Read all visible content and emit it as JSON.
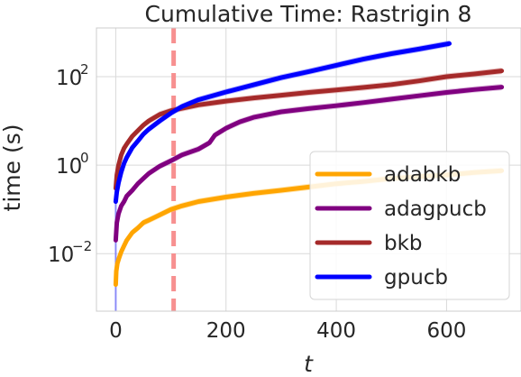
{
  "chart_data": {
    "type": "line",
    "title": "Cumulative Time: Rastrigin 8",
    "xlabel": "t",
    "ylabel": "time (s)",
    "xlim": [
      -35,
      735
    ],
    "ylim_log10": [
      -3.3,
      3.1
    ],
    "yscale": "log",
    "grid": true,
    "legend_position": "bottom-right",
    "x_ticks": [
      {
        "value": 0,
        "label": "0"
      },
      {
        "value": 200,
        "label": "200"
      },
      {
        "value": 400,
        "label": "400"
      },
      {
        "value": 600,
        "label": "600"
      }
    ],
    "y_ticks": [
      {
        "exp": 2,
        "base": "10",
        "sup": "2"
      },
      {
        "exp": 0,
        "base": "10",
        "sup": "0"
      },
      {
        "exp": -2,
        "base": "10",
        "sup": "−2"
      }
    ],
    "vline": {
      "x": 105,
      "color": "#f79090"
    },
    "series": [
      {
        "name": "adabkb",
        "color": "#ffa500",
        "band_color": "#ffcc66",
        "points": [
          [
            0,
            0.002
          ],
          [
            1,
            0.004
          ],
          [
            3,
            0.006
          ],
          [
            6,
            0.008
          ],
          [
            10,
            0.011
          ],
          [
            15,
            0.015
          ],
          [
            20,
            0.02
          ],
          [
            30,
            0.03
          ],
          [
            40,
            0.038
          ],
          [
            50,
            0.05
          ],
          [
            60,
            0.057
          ],
          [
            80,
            0.075
          ],
          [
            100,
            0.1
          ],
          [
            120,
            0.12
          ],
          [
            150,
            0.15
          ],
          [
            200,
            0.19
          ],
          [
            250,
            0.23
          ],
          [
            300,
            0.27
          ],
          [
            350,
            0.32
          ],
          [
            400,
            0.38
          ],
          [
            450,
            0.43
          ],
          [
            500,
            0.5
          ],
          [
            550,
            0.55
          ],
          [
            600,
            0.6
          ],
          [
            650,
            0.68
          ],
          [
            700,
            0.75
          ]
        ]
      },
      {
        "name": "adagpucb",
        "color": "#800080",
        "band_color": "#c080c0",
        "points": [
          [
            0,
            0.02
          ],
          [
            2,
            0.05
          ],
          [
            5,
            0.08
          ],
          [
            10,
            0.12
          ],
          [
            15,
            0.15
          ],
          [
            20,
            0.2
          ],
          [
            30,
            0.27
          ],
          [
            40,
            0.38
          ],
          [
            50,
            0.5
          ],
          [
            60,
            0.65
          ],
          [
            80,
            0.95
          ],
          [
            100,
            1.25
          ],
          [
            120,
            1.7
          ],
          [
            150,
            2.3
          ],
          [
            170,
            3.2
          ],
          [
            180,
            4.8
          ],
          [
            200,
            6.8
          ],
          [
            225,
            9.5
          ],
          [
            250,
            12
          ],
          [
            300,
            16
          ],
          [
            350,
            19
          ],
          [
            400,
            22
          ],
          [
            450,
            26
          ],
          [
            500,
            31
          ],
          [
            550,
            37
          ],
          [
            600,
            44
          ],
          [
            650,
            51
          ],
          [
            700,
            58
          ]
        ]
      },
      {
        "name": "bkb",
        "color": "#a52a2a",
        "band_color": "#d08080",
        "points": [
          [
            0,
            0.3
          ],
          [
            2,
            0.6
          ],
          [
            5,
            1
          ],
          [
            10,
            1.7
          ],
          [
            15,
            2.4
          ],
          [
            20,
            3
          ],
          [
            30,
            4.5
          ],
          [
            40,
            6
          ],
          [
            50,
            8
          ],
          [
            60,
            10
          ],
          [
            80,
            14
          ],
          [
            100,
            17
          ],
          [
            150,
            23
          ],
          [
            200,
            28
          ],
          [
            250,
            33
          ],
          [
            300,
            38
          ],
          [
            350,
            44
          ],
          [
            400,
            50
          ],
          [
            450,
            57
          ],
          [
            500,
            66
          ],
          [
            550,
            80
          ],
          [
            600,
            100
          ],
          [
            650,
            115
          ],
          [
            700,
            135
          ]
        ]
      },
      {
        "name": "gpucb",
        "color": "#0000ff",
        "band_color": "#6666ff",
        "points": [
          [
            0,
            0.15
          ],
          [
            2,
            0.25
          ],
          [
            5,
            0.4
          ],
          [
            10,
            0.7
          ],
          [
            15,
            1.1
          ],
          [
            20,
            1.5
          ],
          [
            30,
            2.5
          ],
          [
            40,
            3.5
          ],
          [
            50,
            5
          ],
          [
            60,
            6.5
          ],
          [
            80,
            10
          ],
          [
            100,
            15
          ],
          [
            120,
            21
          ],
          [
            150,
            30
          ],
          [
            200,
            45
          ],
          [
            250,
            65
          ],
          [
            300,
            95
          ],
          [
            350,
            130
          ],
          [
            400,
            180
          ],
          [
            450,
            250
          ],
          [
            500,
            330
          ],
          [
            550,
            420
          ],
          [
            605,
            560
          ]
        ]
      }
    ]
  }
}
